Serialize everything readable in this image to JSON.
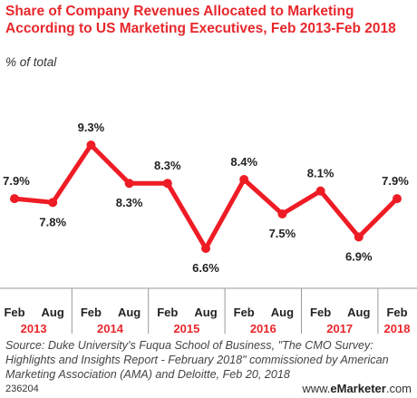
{
  "header": {
    "title": "Share of Company Revenues Allocated to Marketing According to US Marketing Executives, Feb 2013-Feb 2018",
    "subtitle": "% of total"
  },
  "footer": {
    "source": "Source: Duke University's Fuqua School of Business, \"The CMO Survey: Highlights and Insights Report - February 2018\" commissioned by American Marketing Association (AMA) and Deloitte, Feb 20, 2018",
    "chart_id": "236204",
    "brand_prefix": "www.",
    "brand_name": "eMarketer",
    "brand_suffix": ".com"
  },
  "colors": {
    "accent": "#e8272c",
    "line": "#ee1c25"
  },
  "chart_data": {
    "type": "line",
    "title": "Share of Company Revenues Allocated to Marketing According to US Marketing Executives, Feb 2013-Feb 2018",
    "subtitle": "% of total",
    "x": [
      "Feb 2013",
      "Aug 2013",
      "Feb 2014",
      "Aug 2014",
      "Feb 2015",
      "Aug 2015",
      "Feb 2016",
      "Aug 2016",
      "Feb 2017",
      "Aug 2017",
      "Feb 2018"
    ],
    "month_labels": [
      "Feb",
      "Aug",
      "Feb",
      "Aug",
      "Feb",
      "Aug",
      "Feb",
      "Aug",
      "Feb",
      "Aug",
      "Feb"
    ],
    "year_labels": [
      "2013",
      "2014",
      "2015",
      "2016",
      "2017",
      "2018"
    ],
    "values": [
      7.9,
      7.8,
      9.3,
      8.3,
      8.3,
      6.6,
      8.4,
      7.5,
      8.1,
      6.9,
      7.9
    ],
    "value_labels": [
      "7.9%",
      "7.8%",
      "9.3%",
      "8.3%",
      "8.3%",
      "6.6%",
      "8.4%",
      "7.5%",
      "8.1%",
      "6.9%",
      "7.9%"
    ],
    "label_positions": [
      "above",
      "below",
      "above",
      "below",
      "above",
      "below",
      "above",
      "below",
      "above",
      "below",
      "above"
    ],
    "unit": "%",
    "grid": false,
    "legend": "none"
  }
}
